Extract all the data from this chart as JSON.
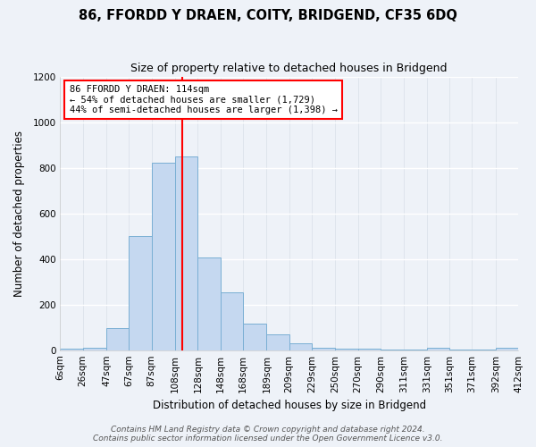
{
  "title": "86, FFORDD Y DRAEN, COITY, BRIDGEND, CF35 6DQ",
  "subtitle": "Size of property relative to detached houses in Bridgend",
  "xlabel": "Distribution of detached houses by size in Bridgend",
  "ylabel": "Number of detached properties",
  "bar_left_edges": [
    6,
    26,
    47,
    67,
    87,
    108,
    128,
    148,
    168,
    189,
    209,
    229,
    250,
    270,
    290,
    311,
    331,
    351,
    371,
    392
  ],
  "bar_widths": [
    20,
    21,
    20,
    20,
    21,
    20,
    20,
    20,
    21,
    20,
    20,
    21,
    20,
    20,
    21,
    20,
    20,
    20,
    21,
    20
  ],
  "bar_heights": [
    5,
    10,
    95,
    500,
    820,
    850,
    405,
    255,
    115,
    70,
    30,
    10,
    5,
    5,
    2,
    2,
    10,
    2,
    2,
    10
  ],
  "bar_color": "#c5d8f0",
  "bar_edge_color": "#7aafd4",
  "vline_x": 114,
  "vline_color": "red",
  "ylim": [
    0,
    1200
  ],
  "yticks": [
    0,
    200,
    400,
    600,
    800,
    1000,
    1200
  ],
  "xtick_labels": [
    "6sqm",
    "26sqm",
    "47sqm",
    "67sqm",
    "87sqm",
    "108sqm",
    "128sqm",
    "148sqm",
    "168sqm",
    "189sqm",
    "209sqm",
    "229sqm",
    "250sqm",
    "270sqm",
    "290sqm",
    "311sqm",
    "331sqm",
    "351sqm",
    "371sqm",
    "392sqm",
    "412sqm"
  ],
  "annotation_title": "86 FFORDD Y DRAEN: 114sqm",
  "annotation_line1": "← 54% of detached houses are smaller (1,729)",
  "annotation_line2": "44% of semi-detached houses are larger (1,398) →",
  "annotation_box_color": "white",
  "annotation_box_edgecolor": "red",
  "footer_line1": "Contains HM Land Registry data © Crown copyright and database right 2024.",
  "footer_line2": "Contains public sector information licensed under the Open Government Licence v3.0.",
  "bg_color": "#eef2f8",
  "plot_bg_color": "#eef2f8",
  "title_fontsize": 10.5,
  "subtitle_fontsize": 9,
  "axis_label_fontsize": 8.5,
  "tick_fontsize": 7.5,
  "annotation_title_fontsize": 8,
  "annotation_fontsize": 7.5,
  "footer_fontsize": 6.5
}
